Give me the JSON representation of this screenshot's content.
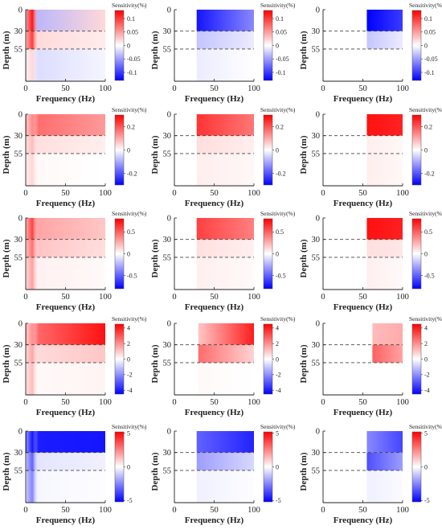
{
  "chart_data": {
    "type": "heatmap",
    "xlabel": "Frequency (Hz)",
    "ylabel": "Depth (m)",
    "x_ticks": [
      "0",
      "50",
      "100"
    ],
    "y_ticks": [
      "0",
      "30",
      "55"
    ],
    "xlim": [
      0,
      100
    ],
    "ylim": [
      0,
      100
    ],
    "dashed_lines_depth": [
      30,
      55
    ],
    "colorbar_title": "Sensitivity(%)",
    "colormap": {
      "low": "#0000ff",
      "mid": "#ffffff",
      "high": "#ff0000"
    },
    "colorbar_ticks": [
      [
        "0.1",
        "0.05",
        "0",
        "-0.05",
        "-0.1"
      ],
      [
        "0.2",
        "0",
        "-0.2"
      ],
      [
        "0.5",
        "0",
        "-0.5"
      ],
      [
        "4",
        "2",
        "0",
        "-2",
        "-4"
      ],
      [
        "5",
        "0",
        "-5"
      ]
    ],
    "panels": [
      {
        "row": 1,
        "col": 1,
        "clim": [
          -0.13,
          0.13
        ],
        "x_start": 0,
        "layers": [
          [
            -0.04,
            0.02
          ],
          [
            0.02,
            0.01
          ],
          [
            -0.02,
            -0.005
          ]
        ],
        "strip": [
          0.12,
          0.1,
          0.02
        ]
      },
      {
        "row": 1,
        "col": 2,
        "clim": [
          -0.13,
          0.13
        ],
        "x_start": 28,
        "layers": [
          [
            -0.12,
            -0.06
          ],
          [
            -0.03,
            -0.01
          ],
          [
            -0.01,
            0
          ]
        ],
        "strip": null
      },
      {
        "row": 1,
        "col": 3,
        "clim": [
          -0.13,
          0.13
        ],
        "x_start": 55,
        "layers": [
          [
            -0.13,
            -0.1
          ],
          [
            -0.03,
            -0.01
          ],
          [
            0,
            0
          ]
        ],
        "strip": null
      },
      {
        "row": 2,
        "col": 1,
        "clim": [
          -0.3,
          0.3
        ],
        "x_start": 0,
        "layers": [
          [
            0.18,
            0.12
          ],
          [
            0.04,
            0.02
          ],
          [
            0.01,
            0
          ]
        ],
        "strip": [
          0.14,
          0.08,
          0.05
        ]
      },
      {
        "row": 2,
        "col": 2,
        "clim": [
          -0.3,
          0.3
        ],
        "x_start": 28,
        "layers": [
          [
            0.24,
            0.16
          ],
          [
            0.04,
            0.02
          ],
          [
            0.02,
            0.01
          ]
        ],
        "strip": null
      },
      {
        "row": 2,
        "col": 3,
        "clim": [
          -0.3,
          0.3
        ],
        "x_start": 55,
        "layers": [
          [
            0.28,
            0.26
          ],
          [
            0.02,
            0.01
          ],
          [
            0.02,
            0.01
          ]
        ],
        "strip": null
      },
      {
        "row": 3,
        "col": 1,
        "clim": [
          -0.8,
          0.8
        ],
        "x_start": 0,
        "layers": [
          [
            0.3,
            0.18
          ],
          [
            0.2,
            0.1
          ],
          [
            0.05,
            0.02
          ]
        ],
        "strip": [
          0.6,
          0.45,
          0.3
        ]
      },
      {
        "row": 3,
        "col": 2,
        "clim": [
          -0.8,
          0.8
        ],
        "x_start": 28,
        "layers": [
          [
            0.6,
            0.4
          ],
          [
            0.1,
            0.05
          ],
          [
            0.05,
            0.02
          ]
        ],
        "strip": null
      },
      {
        "row": 3,
        "col": 3,
        "clim": [
          -0.8,
          0.8
        ],
        "x_start": 55,
        "layers": [
          [
            0.75,
            0.7
          ],
          [
            0.1,
            0.08
          ],
          [
            0.05,
            0.02
          ]
        ],
        "strip": null
      },
      {
        "row": 4,
        "col": 1,
        "clim": [
          -4.5,
          4.5
        ],
        "x_start": 0,
        "layers": [
          [
            2.4,
            4.2
          ],
          [
            0.6,
            1.0
          ],
          [
            0.1,
            0.2
          ]
        ],
        "strip": [
          2.0,
          1.6,
          1.2
        ]
      },
      {
        "row": 4,
        "col": 2,
        "clim": [
          -4.5,
          4.5
        ],
        "x_start": 30,
        "layers": [
          [
            1.0,
            4.0
          ],
          [
            2.6,
            0.8
          ],
          [
            0.1,
            0
          ]
        ],
        "strip": null
      },
      {
        "row": 4,
        "col": 3,
        "clim": [
          -4.5,
          4.5
        ],
        "x_start": 62,
        "layers": [
          [
            1.2,
            1.5
          ],
          [
            2.8,
            1.6
          ],
          [
            0,
            0
          ]
        ],
        "strip": null
      },
      {
        "row": 5,
        "col": 1,
        "clim": [
          -5.2,
          5.2
        ],
        "x_start": 0,
        "layers": [
          [
            -4.6,
            -4.8
          ],
          [
            -0.6,
            -0.3
          ],
          [
            -0.2,
            -0.05
          ]
        ],
        "strip": [
          -4.8,
          -3.2,
          -2.5
        ]
      },
      {
        "row": 5,
        "col": 2,
        "clim": [
          -5.2,
          5.2
        ],
        "x_start": 28,
        "layers": [
          [
            -3.2,
            -4.5
          ],
          [
            -2.0,
            -0.8
          ],
          [
            -0.3,
            -0.05
          ]
        ],
        "strip": null
      },
      {
        "row": 5,
        "col": 3,
        "clim": [
          -5.2,
          5.2
        ],
        "x_start": 55,
        "layers": [
          [
            -2.4,
            -3.8
          ],
          [
            -3.6,
            -2.0
          ],
          [
            -0.3,
            -0.1
          ]
        ],
        "strip": null
      }
    ]
  }
}
